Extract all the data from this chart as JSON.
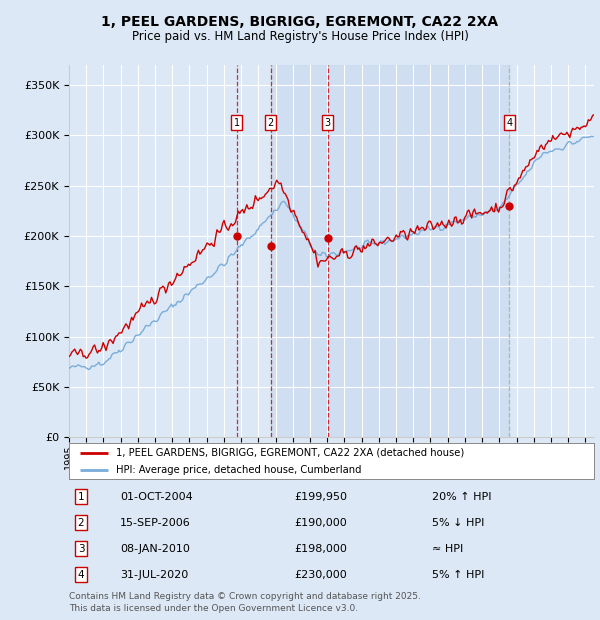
{
  "title_line1": "1, PEEL GARDENS, BIGRIGG, EGREMONT, CA22 2XA",
  "title_line2": "Price paid vs. HM Land Registry's House Price Index (HPI)",
  "ylim": [
    0,
    370000
  ],
  "yticks": [
    0,
    50000,
    100000,
    150000,
    200000,
    250000,
    300000,
    350000
  ],
  "ytick_labels": [
    "£0",
    "£50K",
    "£100K",
    "£150K",
    "£200K",
    "£250K",
    "£300K",
    "£350K"
  ],
  "x_start_year": 1995,
  "x_end_year": 2025.5,
  "background_color": "#dce8f5",
  "plot_bg_color": "#dce8f5",
  "grid_color": "#ffffff",
  "red_color": "#cc0000",
  "blue_color": "#7aadda",
  "shade_color": "#c8d8f0",
  "sale_points": [
    {
      "year": 2004.75,
      "price": 199950,
      "label": "1",
      "date": "01-OCT-2004",
      "price_str": "£199,950",
      "note": "20% ↑ HPI",
      "vline_color": "#cc0000",
      "vline_style": "--"
    },
    {
      "year": 2006.71,
      "price": 190000,
      "label": "2",
      "date": "15-SEP-2006",
      "price_str": "£190,000",
      "note": "5% ↓ HPI",
      "vline_color": "#cc0000",
      "vline_style": "--"
    },
    {
      "year": 2010.02,
      "price": 198000,
      "label": "3",
      "date": "08-JAN-2010",
      "price_str": "£198,000",
      "note": "≈ HPI",
      "vline_color": "#cc0000",
      "vline_style": "--"
    },
    {
      "year": 2020.58,
      "price": 230000,
      "label": "4",
      "date": "31-JUL-2020",
      "price_str": "£230,000",
      "note": "5% ↑ HPI",
      "vline_color": "#aaaaaa",
      "vline_style": "--"
    }
  ],
  "shade_between": [
    2006.71,
    2020.58
  ],
  "legend_line1": "1, PEEL GARDENS, BIGRIGG, EGREMONT, CA22 2XA (detached house)",
  "legend_line2": "HPI: Average price, detached house, Cumberland",
  "footer": "Contains HM Land Registry data © Crown copyright and database right 2025.\nThis data is licensed under the Open Government Licence v3.0.",
  "table_rows": [
    {
      "label": "1",
      "date": "01-OCT-2004",
      "price": "£199,950",
      "note": "20% ↑ HPI"
    },
    {
      "label": "2",
      "date": "15-SEP-2006",
      "price": "£190,000",
      "note": "5% ↓ HPI"
    },
    {
      "label": "3",
      "date": "08-JAN-2010",
      "price": "£198,000",
      "note": "≈ HPI"
    },
    {
      "label": "4",
      "date": "31-JUL-2020",
      "price": "£230,000",
      "note": "5% ↑ HPI"
    }
  ]
}
